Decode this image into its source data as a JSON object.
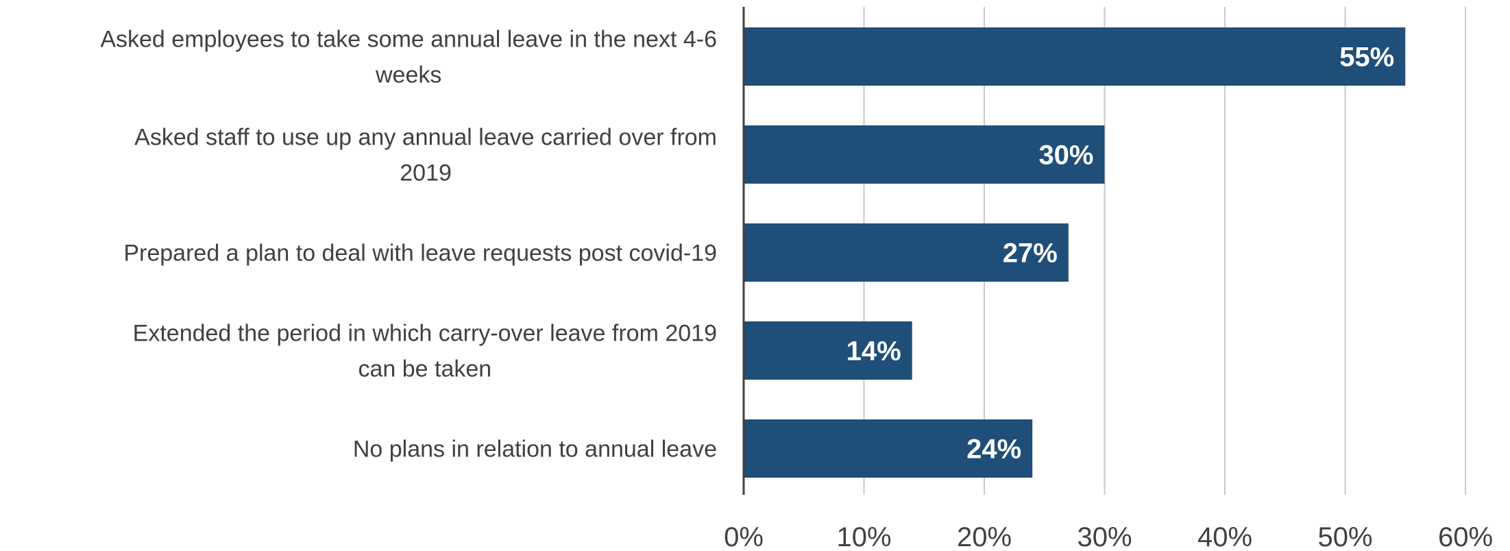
{
  "chart_data": {
    "type": "bar",
    "orientation": "horizontal",
    "categories": [
      "Asked employees to take some annual leave in the next 4-6 weeks",
      "Asked staff to use up any annual leave carried over from 2019",
      "Prepared a plan to deal with leave requests post covid-19",
      "Extended the period in which carry-over leave from 2019 can be taken",
      "No plans in relation to annual leave"
    ],
    "category_label_lines": [
      [
        "Asked employees to take some annual leave in the next 4-6",
        "weeks"
      ],
      [
        "Asked staff to use up any annual leave carried over from",
        "2019"
      ],
      [
        "Prepared a plan to deal with leave requests post covid-19"
      ],
      [
        "Extended the period in which carry-over leave from 2019",
        "can be taken"
      ],
      [
        "No plans in relation to annual leave"
      ]
    ],
    "values": [
      55,
      30,
      27,
      14,
      24
    ],
    "data_labels": [
      "55%",
      "30%",
      "27%",
      "14%",
      "24%"
    ],
    "xlim": [
      0,
      60
    ],
    "x_ticks": [
      0,
      10,
      20,
      30,
      40,
      50,
      60
    ],
    "x_tick_labels": [
      "0%",
      "10%",
      "20%",
      "30%",
      "40%",
      "50%",
      "60%"
    ],
    "title": "",
    "xlabel": "",
    "ylabel": "",
    "grid": "vertical",
    "legend": "none",
    "colors": {
      "bar": "#1f4e79",
      "grid": "#c8c8c8",
      "axis": "#404040",
      "text": "#404040",
      "data_label": "#ffffff"
    }
  }
}
